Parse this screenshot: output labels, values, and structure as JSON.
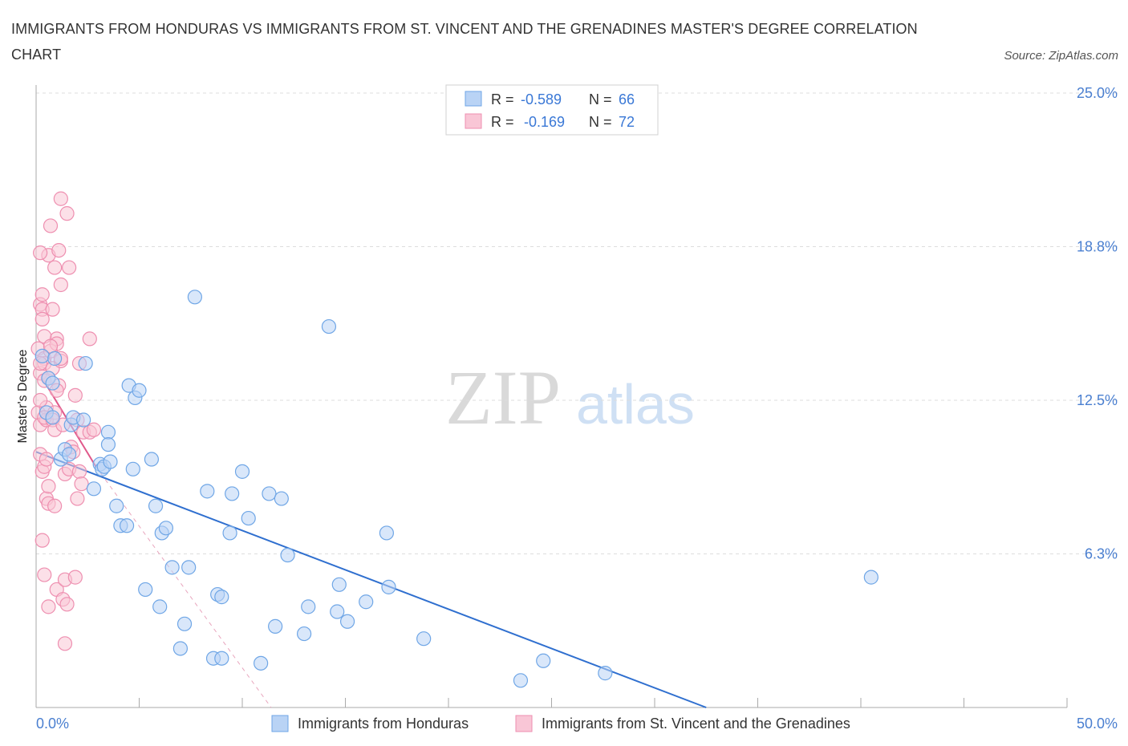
{
  "title": "IMMIGRANTS FROM HONDURAS VS IMMIGRANTS FROM ST. VINCENT AND THE GRENADINES MASTER'S DEGREE CORRELATION CHART",
  "source": "Source: ZipAtlas.com",
  "watermark": {
    "zip": "ZIP",
    "atlas": "atlas"
  },
  "colors": {
    "blue": "#6fa6e6",
    "blue_fill": "#b9d3f5",
    "blue_line": "#2f6fcf",
    "pink": "#ee8fb0",
    "pink_fill": "#f9c6d6",
    "pink_line": "#e0588a",
    "axis_label": "#4a7fd0",
    "grid": "#dddddd"
  },
  "legend_box": {
    "rows": [
      {
        "r_label": "R =",
        "r_value": "-0.589",
        "n_label": "N =",
        "n_value": "66"
      },
      {
        "r_label": "R =",
        "r_value": "-0.169",
        "n_label": "N =",
        "n_value": "72"
      }
    ]
  },
  "chart_data": {
    "type": "scatter",
    "title": "IMMIGRANTS FROM HONDURAS VS IMMIGRANTS FROM ST. VINCENT AND THE GRENADINES MASTER'S DEGREE CORRELATION CHART",
    "xlabel": "",
    "ylabel": "Master's Degree",
    "xlim": [
      0,
      50
    ],
    "ylim": [
      0,
      25
    ],
    "x_tick_labels": [
      {
        "value": 0,
        "label": "0.0%"
      },
      {
        "value": 50,
        "label": "50.0%"
      }
    ],
    "y_tick_labels": [
      {
        "value": 25.0,
        "label": "25.0%"
      },
      {
        "value": 18.75,
        "label": "18.8%"
      },
      {
        "value": 12.5,
        "label": "12.5%"
      },
      {
        "value": 6.25,
        "label": "6.3%"
      }
    ],
    "legend_position": "bottom",
    "series": [
      {
        "name": "Immigrants from Honduras",
        "color": "#6fa6e6",
        "R": -0.589,
        "N": 66,
        "trend": {
          "x": [
            0,
            32.5
          ],
          "y": [
            10.4,
            0
          ]
        },
        "points": [
          [
            0.3,
            14.3
          ],
          [
            0.6,
            13.4
          ],
          [
            0.8,
            13.2
          ],
          [
            0.9,
            14.2
          ],
          [
            0.5,
            12.0
          ],
          [
            0.8,
            11.8
          ],
          [
            1.2,
            10.1
          ],
          [
            1.4,
            10.5
          ],
          [
            1.6,
            10.3
          ],
          [
            1.7,
            11.5
          ],
          [
            1.8,
            11.8
          ],
          [
            2.3,
            11.7
          ],
          [
            2.4,
            14.0
          ],
          [
            2.8,
            8.9
          ],
          [
            3.1,
            9.9
          ],
          [
            3.2,
            9.7
          ],
          [
            3.3,
            9.8
          ],
          [
            3.5,
            11.2
          ],
          [
            3.5,
            10.7
          ],
          [
            3.6,
            10.0
          ],
          [
            3.9,
            8.2
          ],
          [
            4.1,
            7.4
          ],
          [
            4.4,
            7.4
          ],
          [
            4.5,
            13.1
          ],
          [
            4.7,
            9.7
          ],
          [
            4.8,
            12.6
          ],
          [
            5.0,
            12.9
          ],
          [
            5.3,
            4.8
          ],
          [
            5.6,
            10.1
          ],
          [
            5.8,
            8.2
          ],
          [
            6.0,
            4.1
          ],
          [
            6.1,
            7.1
          ],
          [
            6.3,
            7.3
          ],
          [
            6.6,
            5.7
          ],
          [
            7.0,
            2.4
          ],
          [
            7.2,
            3.4
          ],
          [
            7.4,
            5.7
          ],
          [
            7.7,
            16.7
          ],
          [
            8.3,
            8.8
          ],
          [
            8.6,
            2.0
          ],
          [
            8.8,
            4.6
          ],
          [
            9.0,
            4.5
          ],
          [
            9.0,
            2.0
          ],
          [
            9.4,
            7.1
          ],
          [
            9.5,
            8.7
          ],
          [
            10.0,
            9.6
          ],
          [
            10.3,
            7.7
          ],
          [
            10.9,
            1.8
          ],
          [
            11.3,
            8.7
          ],
          [
            11.6,
            3.3
          ],
          [
            11.9,
            8.5
          ],
          [
            12.2,
            6.2
          ],
          [
            13.0,
            3.0
          ],
          [
            13.2,
            4.1
          ],
          [
            14.2,
            15.5
          ],
          [
            14.6,
            3.9
          ],
          [
            14.7,
            5.0
          ],
          [
            15.1,
            3.5
          ],
          [
            16.0,
            4.3
          ],
          [
            17.0,
            7.1
          ],
          [
            17.1,
            4.9
          ],
          [
            18.8,
            2.8
          ],
          [
            23.5,
            1.1
          ],
          [
            24.6,
            1.9
          ],
          [
            27.6,
            1.4
          ],
          [
            40.5,
            5.3
          ]
        ]
      },
      {
        "name": "Immigrants from St. Vincent and the Grenadines",
        "color": "#ee8fb0",
        "R": -0.169,
        "N": 72,
        "trend": {
          "x": [
            0.3,
            2.9
          ],
          "y": [
            13.4,
            9.8
          ]
        },
        "trend_extension": {
          "x": [
            2.9,
            11.4
          ],
          "y": [
            9.8,
            0
          ]
        },
        "points": [
          [
            0.1,
            14.6
          ],
          [
            0.1,
            12.0
          ],
          [
            0.2,
            11.5
          ],
          [
            0.2,
            10.3
          ],
          [
            0.3,
            9.6
          ],
          [
            0.3,
            6.8
          ],
          [
            0.2,
            13.6
          ],
          [
            0.2,
            16.4
          ],
          [
            0.3,
            16.2
          ],
          [
            0.3,
            15.8
          ],
          [
            0.4,
            14.2
          ],
          [
            0.4,
            14.0
          ],
          [
            0.4,
            13.3
          ],
          [
            0.5,
            12.2
          ],
          [
            0.5,
            11.7
          ],
          [
            0.4,
            11.8
          ],
          [
            0.4,
            9.8
          ],
          [
            0.5,
            8.5
          ],
          [
            0.4,
            5.4
          ],
          [
            0.6,
            9.0
          ],
          [
            0.6,
            8.3
          ],
          [
            0.6,
            4.1
          ],
          [
            0.6,
            18.4
          ],
          [
            0.7,
            19.6
          ],
          [
            0.7,
            14.5
          ],
          [
            0.8,
            13.8
          ],
          [
            0.9,
            12.0
          ],
          [
            0.8,
            11.7
          ],
          [
            0.9,
            11.3
          ],
          [
            0.9,
            8.2
          ],
          [
            0.8,
            16.2
          ],
          [
            0.9,
            17.9
          ],
          [
            1.0,
            15.0
          ],
          [
            1.0,
            14.8
          ],
          [
            1.1,
            13.1
          ],
          [
            1.2,
            14.1
          ],
          [
            1.1,
            18.6
          ],
          [
            1.2,
            17.2
          ],
          [
            1.2,
            20.7
          ],
          [
            1.0,
            4.8
          ],
          [
            1.3,
            4.4
          ],
          [
            1.4,
            5.2
          ],
          [
            1.4,
            2.6
          ],
          [
            1.4,
            9.5
          ],
          [
            1.5,
            20.1
          ],
          [
            1.5,
            4.2
          ],
          [
            1.6,
            9.7
          ],
          [
            1.7,
            10.6
          ],
          [
            1.8,
            10.4
          ],
          [
            1.9,
            5.3
          ],
          [
            1.9,
            12.7
          ],
          [
            2.0,
            8.5
          ],
          [
            2.0,
            11.7
          ],
          [
            2.1,
            9.6
          ],
          [
            2.1,
            14.0
          ],
          [
            2.2,
            9.1
          ],
          [
            2.3,
            11.2
          ],
          [
            0.2,
            18.5
          ],
          [
            0.3,
            16.8
          ],
          [
            0.6,
            13.4
          ],
          [
            1.2,
            14.2
          ],
          [
            1.6,
            17.9
          ],
          [
            2.6,
            11.2
          ],
          [
            2.6,
            15.0
          ],
          [
            2.8,
            11.3
          ],
          [
            0.2,
            14.0
          ],
          [
            0.2,
            12.5
          ],
          [
            0.4,
            15.1
          ],
          [
            0.5,
            10.1
          ],
          [
            1.0,
            12.9
          ],
          [
            1.3,
            11.5
          ],
          [
            0.7,
            14.7
          ]
        ]
      }
    ]
  }
}
